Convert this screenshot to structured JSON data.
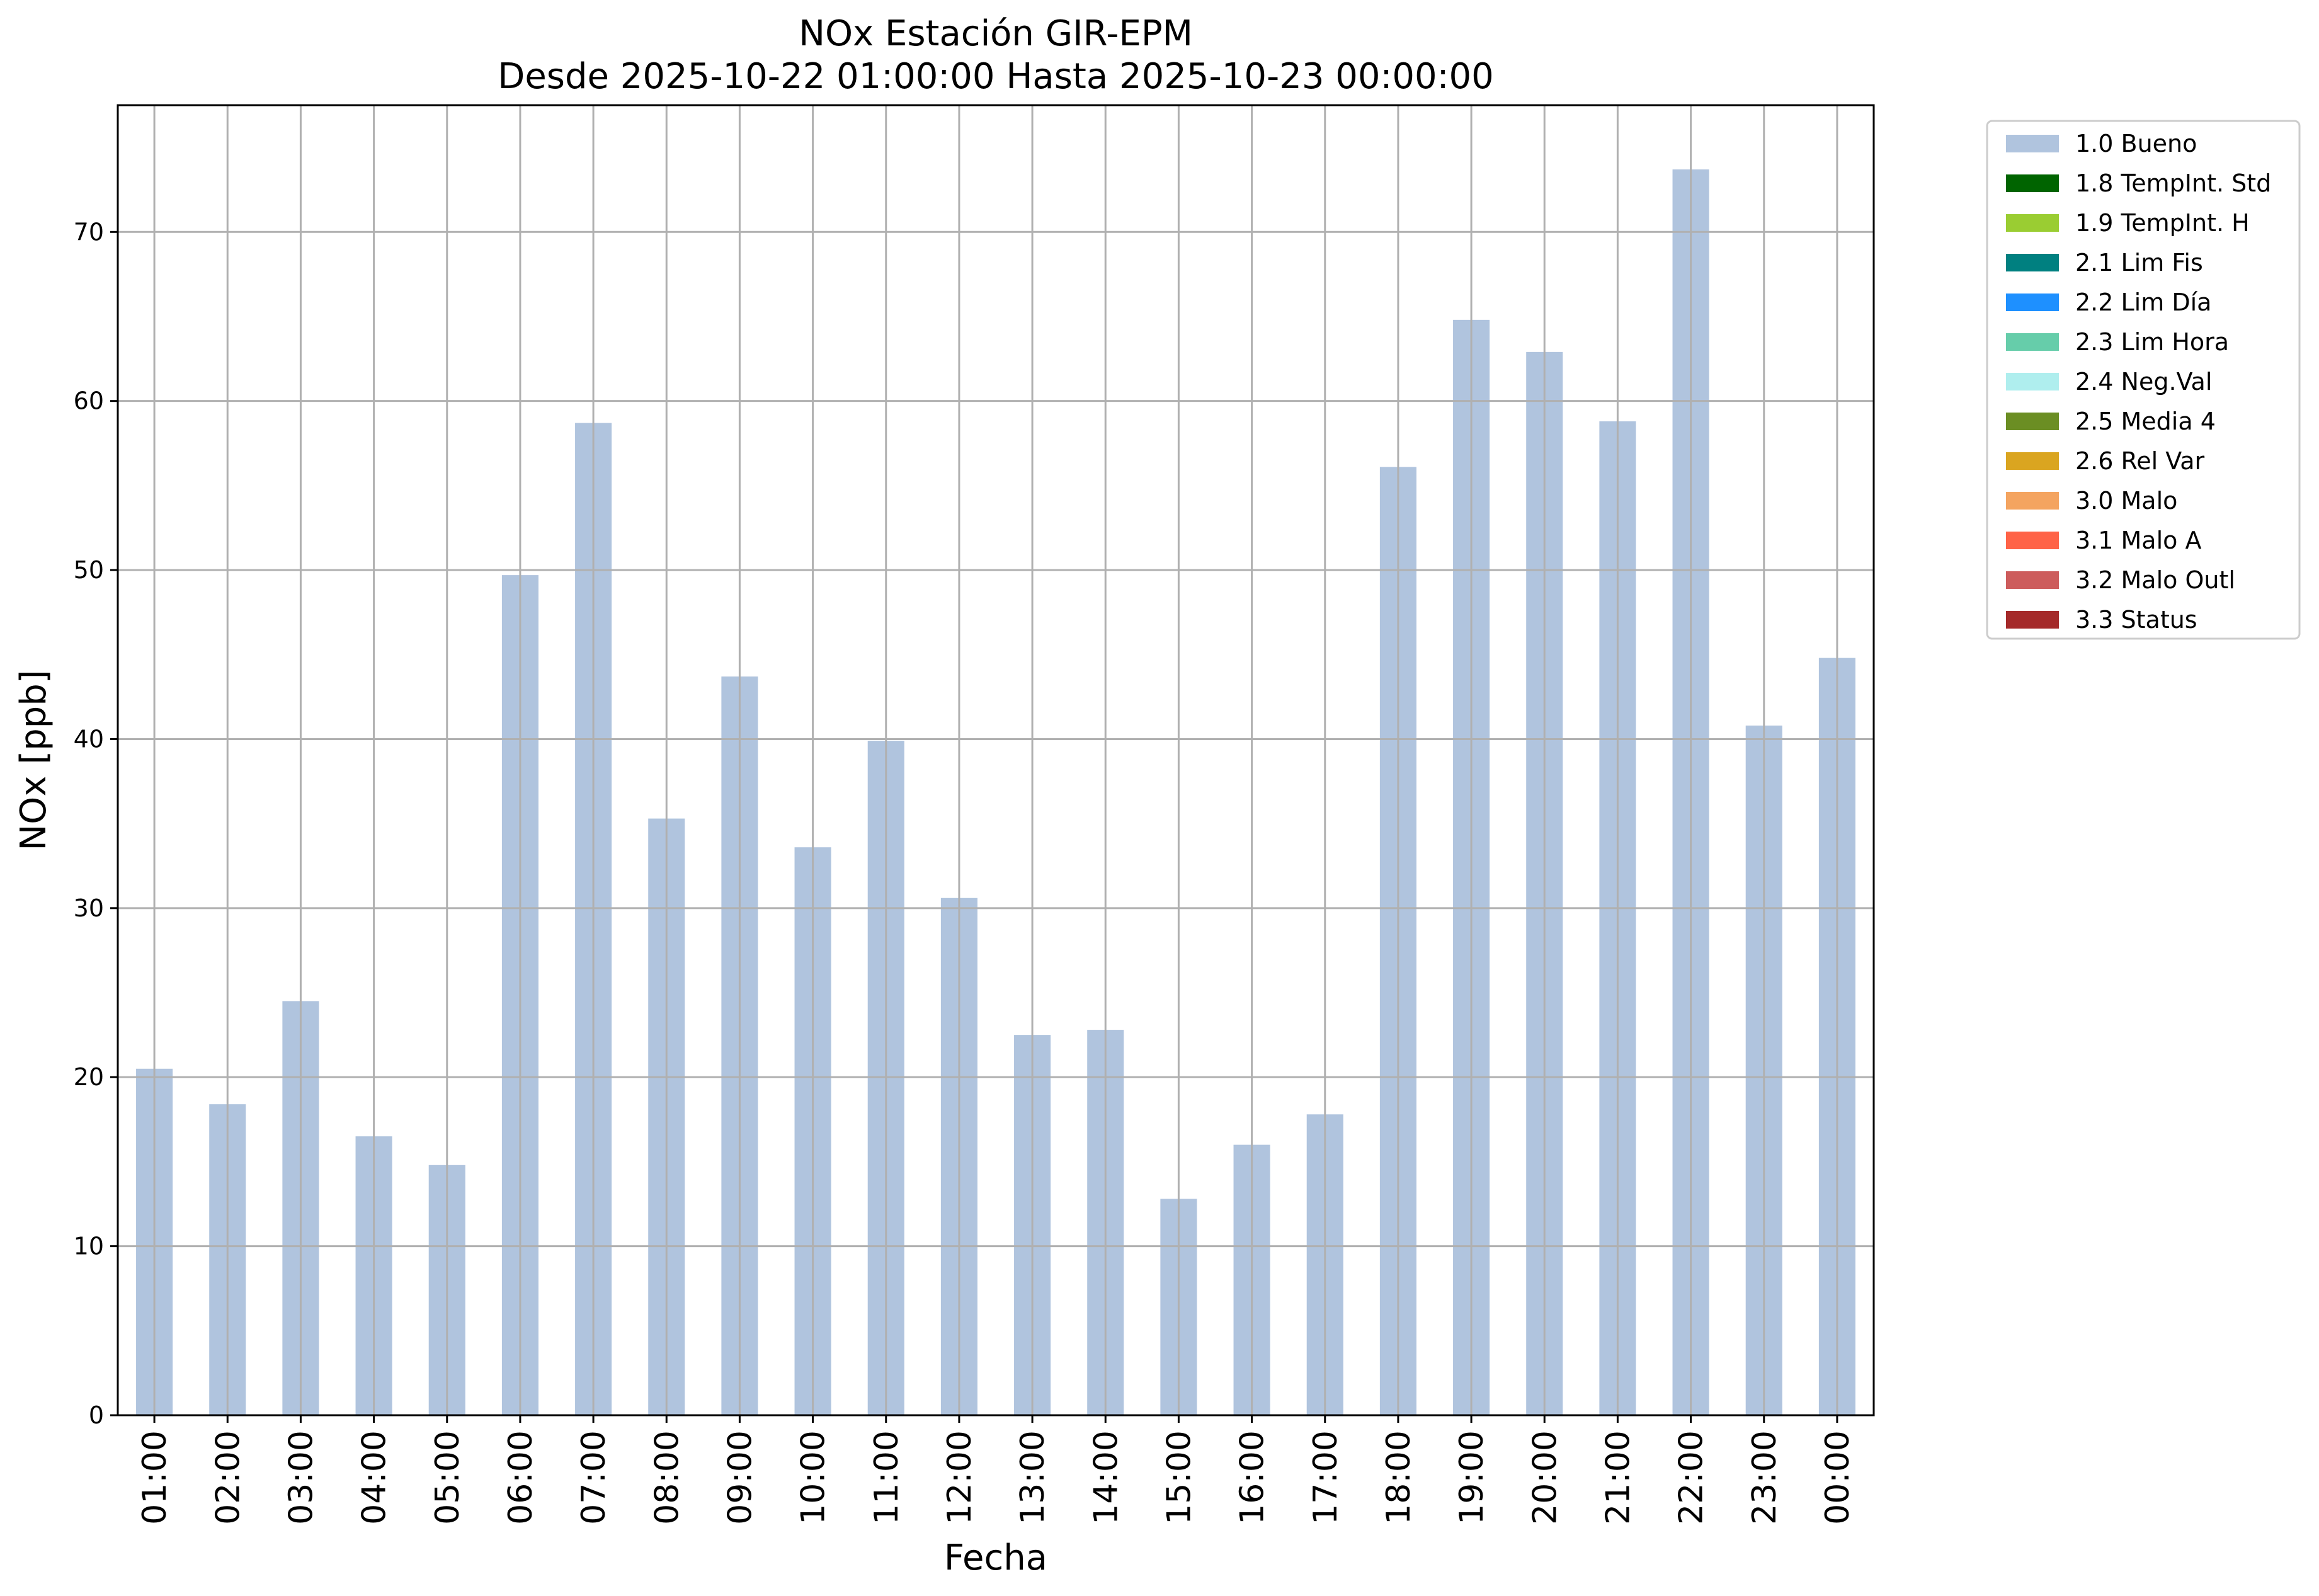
{
  "chart_data": {
    "type": "bar",
    "title": "NOx Estación GIR-EPM",
    "subtitle": "Desde 2025-10-22 01:00:00 Hasta 2025-10-23 00:00:00",
    "xlabel": "Fecha",
    "ylabel": "NOx [ppb]",
    "ylim": [
      0,
      77.5
    ],
    "yticks": [
      0,
      10,
      20,
      30,
      40,
      50,
      60,
      70
    ],
    "grid": true,
    "legend_position": "outside-top-right",
    "categories": [
      "01:00",
      "02:00",
      "03:00",
      "04:00",
      "05:00",
      "06:00",
      "07:00",
      "08:00",
      "09:00",
      "10:00",
      "11:00",
      "12:00",
      "13:00",
      "14:00",
      "15:00",
      "16:00",
      "17:00",
      "18:00",
      "19:00",
      "20:00",
      "21:00",
      "22:00",
      "23:00",
      "00:00"
    ],
    "series": [
      {
        "name": "1.0 Bueno",
        "color": "#b0c4de",
        "values": [
          20.5,
          18.4,
          24.5,
          16.5,
          14.8,
          49.7,
          58.7,
          35.3,
          43.7,
          33.6,
          39.9,
          30.6,
          22.5,
          22.8,
          12.8,
          16.0,
          17.8,
          56.1,
          64.8,
          62.9,
          58.8,
          73.7,
          40.8,
          44.8
        ]
      }
    ],
    "legend": [
      {
        "label": "1.0 Bueno",
        "color": "#b0c4de"
      },
      {
        "label": "1.8 TempInt. Std",
        "color": "#006400"
      },
      {
        "label": "1.9 TempInt. H",
        "color": "#9acd32"
      },
      {
        "label": "2.1 Lim Fis",
        "color": "#008080"
      },
      {
        "label": "2.2 Lim Día",
        "color": "#1e90ff"
      },
      {
        "label": "2.3 Lim Hora",
        "color": "#66cdaa"
      },
      {
        "label": "2.4 Neg.Val",
        "color": "#afeeee"
      },
      {
        "label": "2.5 Media 4",
        "color": "#6b8e23"
      },
      {
        "label": "2.6 Rel Var",
        "color": "#daa520"
      },
      {
        "label": "3.0 Malo",
        "color": "#f4a460"
      },
      {
        "label": "3.1 Malo A",
        "color": "#ff6347"
      },
      {
        "label": "3.2 Malo Outl",
        "color": "#cd5c5c"
      },
      {
        "label": "3.3 Status",
        "color": "#a52a2a"
      }
    ]
  }
}
